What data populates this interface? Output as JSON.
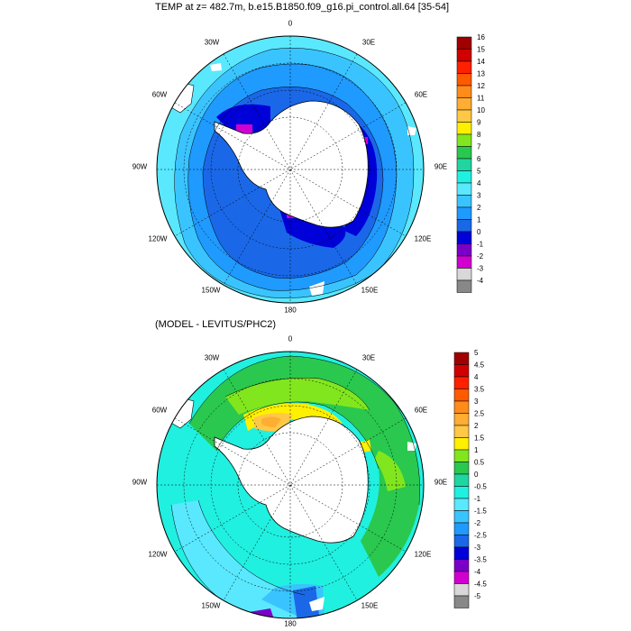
{
  "top_panel": {
    "title": "TEMP at z= 482.7m, b.e15.B1850.f09_g16.pi_control.all.64 [35-54]",
    "lon_labels": {
      "n0": "0",
      "n30e": "30E",
      "n60e": "60E",
      "n90e": "90E",
      "n120e": "120E",
      "n150e": "150E",
      "n180": "180",
      "n150w": "150W",
      "n120w": "120W",
      "n90w": "90W",
      "n60w": "60W",
      "n30w": "30W"
    },
    "colorbar": {
      "labels": [
        "16",
        "15",
        "14",
        "13",
        "12",
        "11",
        "10",
        "9",
        "8",
        "7",
        "6",
        "5",
        "4",
        "3",
        "2",
        "1",
        "0",
        "-1",
        "-2",
        "-3",
        "-4"
      ],
      "colors": [
        "#a00000",
        "#d00000",
        "#ff2000",
        "#ff5a00",
        "#ff8c1a",
        "#ffad33",
        "#ffc846",
        "#fff000",
        "#82e61e",
        "#2ac84e",
        "#20d6a0",
        "#20f0e0",
        "#5ae8ff",
        "#3ac4ff",
        "#1f9aff",
        "#1a68e8",
        "#0000d8",
        "#7a00c8",
        "#d000d0",
        "#d8d8d8",
        "#888888"
      ]
    }
  },
  "bottom_panel": {
    "title": "(MODEL - LEVITUS/PHC2)",
    "lon_labels": {
      "n0": "0",
      "n30e": "30E",
      "n60e": "60E",
      "n90e": "90E",
      "n120e": "120E",
      "n150e": "150E",
      "n180": "180",
      "n150w": "150W",
      "n120w": "120W",
      "n90w": "90W",
      "n60w": "60W",
      "n30w": "30W"
    },
    "colorbar": {
      "labels": [
        "5",
        "4.5",
        "4",
        "3.5",
        "3",
        "2.5",
        "2",
        "1.5",
        "1",
        "0.5",
        "0",
        "-0.5",
        "-1",
        "-1.5",
        "-2",
        "-2.5",
        "-3",
        "-3.5",
        "-4",
        "-4.5",
        "-5"
      ],
      "colors": [
        "#a00000",
        "#d00000",
        "#ff2000",
        "#ff5a00",
        "#ff8c1a",
        "#ffad33",
        "#ffc846",
        "#fff000",
        "#82e61e",
        "#2ac84e",
        "#20d6a0",
        "#20f0e0",
        "#5ae8ff",
        "#3ac4ff",
        "#1f9aff",
        "#1a68e8",
        "#0000d8",
        "#7a00c8",
        "#d000d0",
        "#d8d8d8",
        "#888888"
      ]
    }
  }
}
